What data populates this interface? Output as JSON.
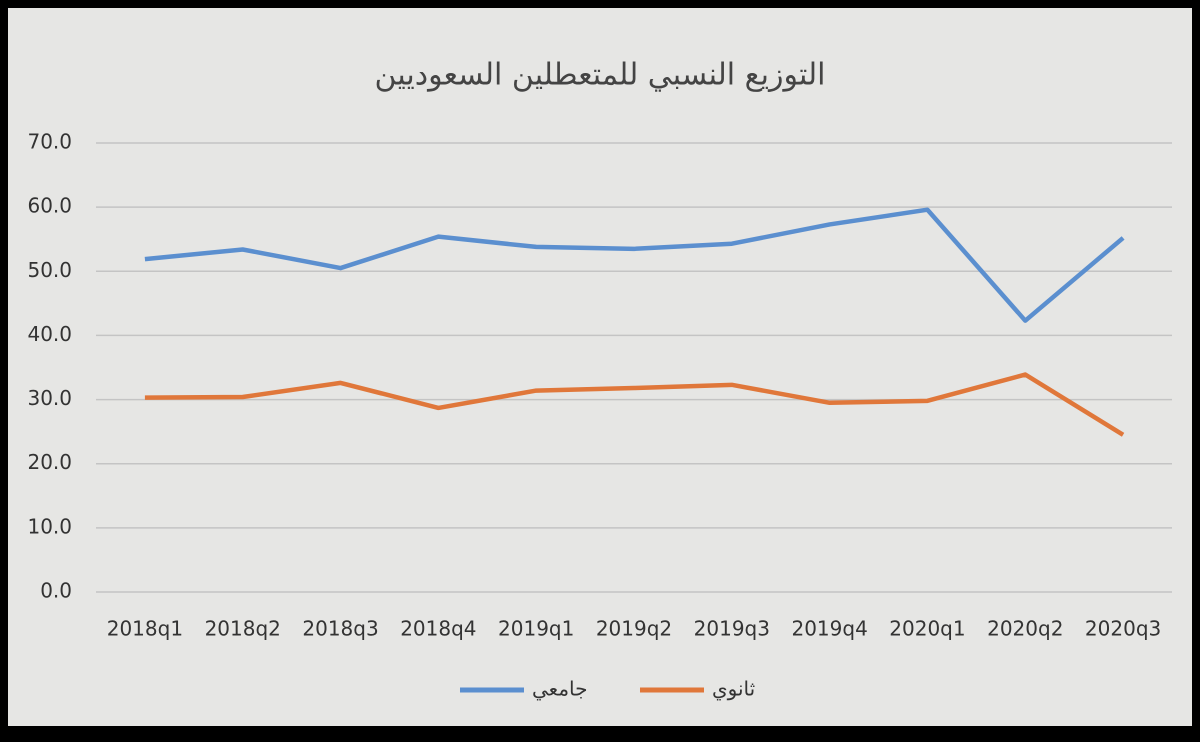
{
  "chart_data": {
    "type": "line",
    "title": "التوزيع النسبي للمتعطلين السعوديين",
    "categories": [
      "2018q1",
      "2018q2",
      "2018q3",
      "2018q4",
      "2019q1",
      "2019q2",
      "2019q3",
      "2019q4",
      "2020q1",
      "2020q2",
      "2020q3"
    ],
    "series": [
      {
        "name": "جامعي",
        "color": "#5b8fcf",
        "values": [
          51.9,
          53.4,
          50.5,
          55.4,
          53.8,
          53.5,
          54.3,
          57.3,
          59.6,
          42.3,
          55.2
        ]
      },
      {
        "name": "ثانوي",
        "color": "#e0773a",
        "values": [
          30.3,
          30.4,
          32.6,
          28.7,
          31.4,
          31.8,
          32.3,
          29.5,
          29.8,
          33.9,
          24.5
        ]
      }
    ],
    "ylim": [
      0,
      70
    ],
    "yticks": [
      {
        "value": 0,
        "label": "0.0"
      },
      {
        "value": 10,
        "label": "10.0"
      },
      {
        "value": 20,
        "label": "20.0"
      },
      {
        "value": 30,
        "label": "30.0"
      },
      {
        "value": 40,
        "label": "40.0"
      },
      {
        "value": 50,
        "label": "50.0"
      },
      {
        "value": 60,
        "label": "60.0"
      },
      {
        "value": 70,
        "label": "70.0"
      }
    ],
    "grid": true,
    "legend": "bottom"
  }
}
